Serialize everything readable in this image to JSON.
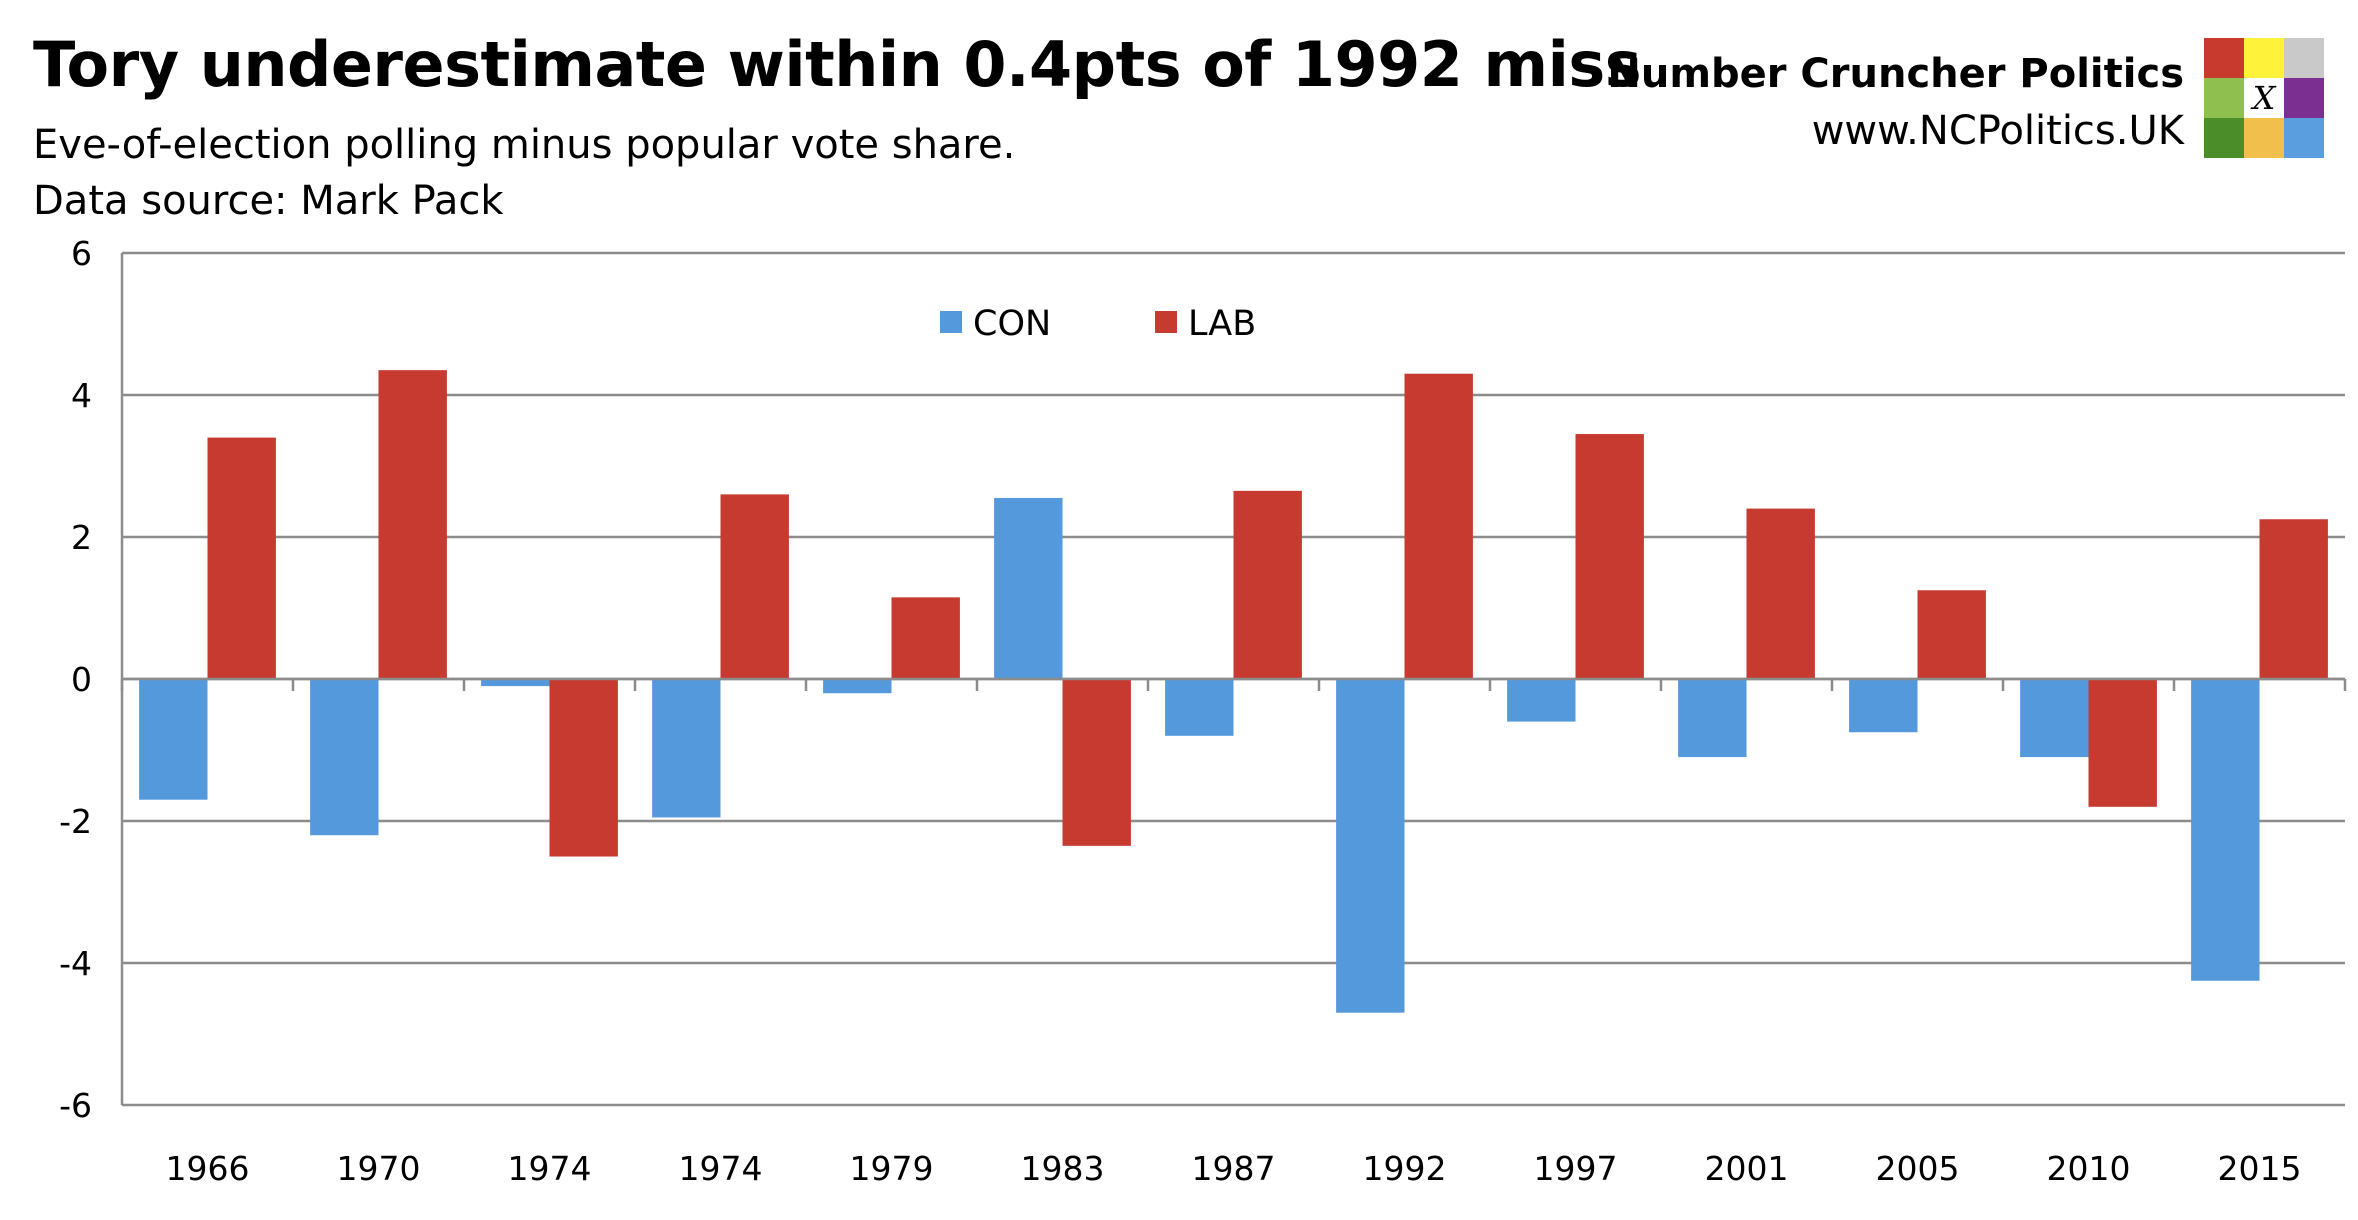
{
  "title": "Tory underestimate within 0.4pts of 1992 miss",
  "subtitle": "Eve-of-election polling minus popular vote share.",
  "source": "Data source: Mark Pack",
  "brand": {
    "name": "Number Cruncher Politics",
    "url": "www.NCPolitics.UK",
    "logo_mark": "X",
    "logo_colors": [
      "#c8392e",
      "#fff23a",
      "#c9c9c9",
      "#8fbf4f",
      "#ffffff",
      "#7a2f91",
      "#4b8e29",
      "#f1bf4c",
      "#5b9ee0"
    ]
  },
  "chart_data": {
    "type": "bar",
    "title": "Tory underestimate within 0.4pts of 1992 miss",
    "xlabel": "",
    "ylabel": "",
    "ylim": [
      -6,
      6
    ],
    "yticks": [
      6,
      4,
      2,
      0,
      -2,
      -4,
      -6
    ],
    "ytick_labels": [
      "6",
      "4",
      "2",
      "0",
      "-2",
      "-4",
      "-6"
    ],
    "grid": true,
    "legend_position": "top-center",
    "categories": [
      "1966",
      "1970",
      "1974",
      "1974",
      "1979",
      "1983",
      "1987",
      "1992",
      "1997",
      "2001",
      "2005",
      "2010",
      "2015"
    ],
    "series": [
      {
        "name": "CON",
        "color": "#5599dd",
        "values": [
          -1.7,
          -2.2,
          -0.1,
          -1.95,
          -0.2,
          2.55,
          -0.8,
          -4.7,
          -0.6,
          -1.1,
          -0.75,
          -1.1,
          -4.25
        ]
      },
      {
        "name": "LAB",
        "color": "#c73a30",
        "values": [
          3.4,
          4.35,
          -2.5,
          2.6,
          1.15,
          -2.35,
          2.65,
          4.3,
          3.45,
          2.4,
          1.25,
          -1.8,
          2.25
        ]
      }
    ]
  }
}
